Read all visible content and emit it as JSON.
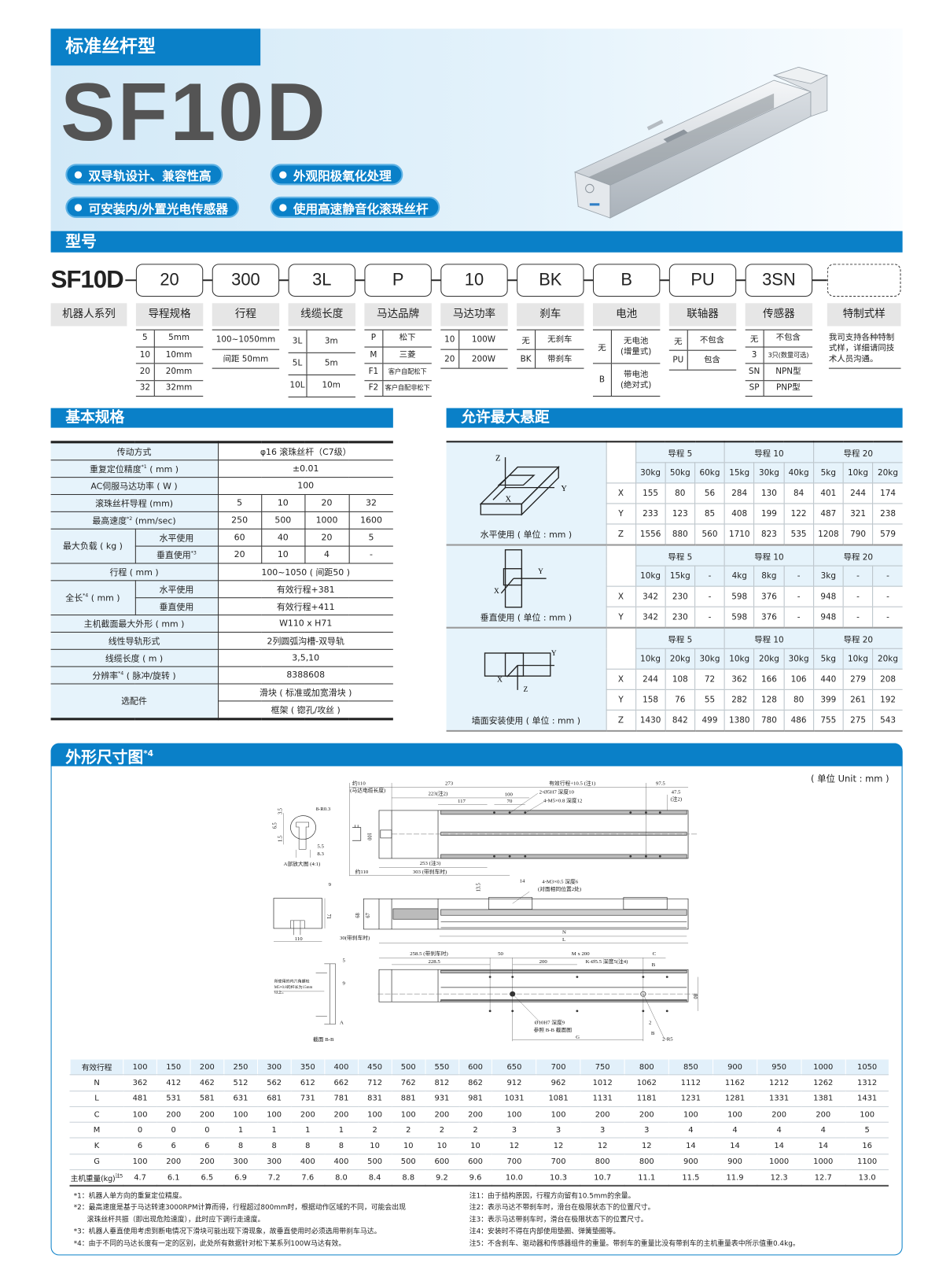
{
  "hero": {
    "tag": "标准丝杆型",
    "model": "SF10D",
    "features": [
      "双导轨设计、兼容性高",
      "外观阳极氧化处理",
      "可安装内/外置光电传感器",
      "使用高速静音化滚珠丝杆"
    ],
    "accent_color": "#0a80c8"
  },
  "model_code": {
    "title": "型号",
    "prefix": "SF10D",
    "codes": [
      "20",
      "300",
      "3L",
      "P",
      "10",
      "BK",
      "B",
      "PU",
      "3SN",
      ""
    ],
    "labels": [
      "机器人系列",
      "导程规格",
      "行程",
      "线缆长度",
      "马达品牌",
      "马达功率",
      "刹车",
      "电池",
      "联轴器",
      "传感器",
      "特制式样"
    ],
    "options": [
      [
        [
          "5",
          "5mm"
        ],
        [
          "10",
          "10mm"
        ],
        [
          "20",
          "20mm"
        ],
        [
          "32",
          "32mm"
        ]
      ],
      [
        [
          "",
          "100~1050mm"
        ],
        [
          "",
          "间距 50mm"
        ]
      ],
      [
        [
          "3L",
          "3m"
        ],
        [
          "5L",
          "5m"
        ],
        [
          "10L",
          "10m"
        ]
      ],
      [
        [
          "P",
          "松下"
        ],
        [
          "M",
          "三菱"
        ],
        [
          "F1",
          "客户自配松下"
        ],
        [
          "F2",
          "客户自配非松下"
        ]
      ],
      [
        [
          "10",
          "100W"
        ],
        [
          "20",
          "200W"
        ]
      ],
      [
        [
          "无",
          "无刹车"
        ],
        [
          "BK",
          "带刹车"
        ]
      ],
      [
        [
          "无",
          "无电池\n(增量式)"
        ],
        [
          "B",
          "带电池\n(绝对式)"
        ]
      ],
      [
        [
          "无",
          "不包含"
        ],
        [
          "PU",
          "包含"
        ]
      ],
      [
        [
          "无",
          "不包含"
        ],
        [
          "3",
          "3只(数量可选)"
        ],
        [
          "SN",
          "NPN型"
        ],
        [
          "SP",
          "PNP型"
        ]
      ]
    ],
    "custom_note": "我司支持各种特制式样，详细请同技术人员沟通。"
  },
  "spec": {
    "title": "基本规格",
    "drive": {
      "label": "传动方式",
      "value": "φ16 滚珠丝杆（C7级）"
    },
    "repeat": {
      "label": "重复定位精度",
      "note": "*1",
      "unit": "( mm )",
      "value": "±0.01"
    },
    "power": {
      "label": "AC伺服马达功率 ( W )",
      "value": "100"
    },
    "lead": {
      "label": "滚珠丝杆导程 (mm)",
      "values": [
        "5",
        "10",
        "20",
        "32"
      ]
    },
    "speed": {
      "label": "最高速度",
      "note": "*2",
      "unit": "(mm/sec)",
      "values": [
        "250",
        "500",
        "1000",
        "1600"
      ]
    },
    "load": {
      "label": "最大负载 ( kg )",
      "h_label": "水平使用",
      "h": [
        "60",
        "40",
        "20",
        "5"
      ],
      "v_label": "垂直使用",
      "v_note": "*3",
      "v": [
        "20",
        "10",
        "4",
        "-"
      ]
    },
    "stroke": {
      "label": "行程 ( mm )",
      "value": "100~1050 ( 间距50 )"
    },
    "length": {
      "label": "全长",
      "note": "*4",
      "unit": "( mm )",
      "h_label": "水平使用",
      "h": "有效行程+381",
      "v_label": "垂直使用",
      "v": "有效行程+411"
    },
    "section": {
      "label": "主机截面最大外形 ( mm )",
      "value": "W110 x H71"
    },
    "guide": {
      "label": "线性导轨形式",
      "value": "2列圆弧沟槽-双导轨"
    },
    "cable": {
      "label": "线缆长度 ( m )",
      "value": "3,5,10"
    },
    "resolution": {
      "label": "分辨率",
      "note": "*4",
      "unit": "( 脉冲/旋转 )",
      "value": "8388608"
    },
    "options": {
      "label": "选配件",
      "values": [
        "滑块 ( 标准或加宽滑块 )",
        "框架 ( 锪孔/攻丝 )"
      ]
    }
  },
  "overhang": {
    "title": "允许最大悬距",
    "blocks": [
      {
        "caption": "水平使用 ( 单位 : mm )",
        "axes": [
          "Z",
          "Y",
          "X"
        ],
        "groups": [
          "导程 5",
          "导程 10",
          "导程 20"
        ],
        "loads": [
          "30kg",
          "50kg",
          "60kg",
          "15kg",
          "30kg",
          "40kg",
          "5kg",
          "10kg",
          "20kg"
        ],
        "rows": [
          {
            "axis": "X",
            "values": [
              "155",
              "80",
              "56",
              "284",
              "130",
              "84",
              "401",
              "244",
              "174"
            ]
          },
          {
            "axis": "Y",
            "values": [
              "233",
              "123",
              "85",
              "408",
              "199",
              "122",
              "487",
              "321",
              "238"
            ]
          },
          {
            "axis": "Z",
            "values": [
              "1556",
              "880",
              "560",
              "1710",
              "823",
              "535",
              "1208",
              "790",
              "579"
            ]
          }
        ]
      },
      {
        "caption": "垂直使用 ( 单位 : mm )",
        "axes": [
          "Y",
          "X"
        ],
        "groups": [
          "导程 5",
          "导程 10",
          "导程 20"
        ],
        "loads": [
          "10kg",
          "15kg",
          "-",
          "4kg",
          "8kg",
          "-",
          "3kg",
          "-",
          "-"
        ],
        "rows": [
          {
            "axis": "X",
            "values": [
              "342",
              "230",
              "-",
              "598",
              "376",
              "-",
              "948",
              "-",
              "-"
            ]
          },
          {
            "axis": "Y",
            "values": [
              "342",
              "230",
              "-",
              "598",
              "376",
              "-",
              "948",
              "-",
              "-"
            ]
          }
        ]
      },
      {
        "caption": "墙面安装使用 ( 单位 : mm )",
        "axes": [
          "Y",
          "X",
          "Z"
        ],
        "groups": [
          "导程 5",
          "导程 10",
          "导程 20"
        ],
        "loads": [
          "10kg",
          "20kg",
          "30kg",
          "10kg",
          "20kg",
          "30kg",
          "5kg",
          "10kg",
          "20kg"
        ],
        "rows": [
          {
            "axis": "X",
            "values": [
              "244",
              "108",
              "72",
              "362",
              "166",
              "106",
              "440",
              "279",
              "208"
            ]
          },
          {
            "axis": "Y",
            "values": [
              "158",
              "76",
              "55",
              "282",
              "128",
              "80",
              "399",
              "261",
              "192"
            ]
          },
          {
            "axis": "Z",
            "values": [
              "1430",
              "842",
              "499",
              "1380",
              "780",
              "486",
              "755",
              "275",
              "543"
            ]
          }
        ]
      }
    ]
  },
  "dimensions": {
    "title": "外形尺寸图",
    "title_note": "*4",
    "unit": "( 单位 Unit : mm )",
    "drawing_labels": [
      "约110",
      "(马达电缆长度)",
      "273",
      "有效行程+10.5 (注1)",
      "97.5",
      "223(注2)",
      "100",
      "70",
      "117",
      "2-Ø5H7 深度10",
      "4-M5×0.8 深度12",
      "47.5",
      "(注2)",
      "8-R0.3",
      "A部放大图 (4:1)",
      "253 (注3)",
      "303 (带刹车时)",
      "约110",
      "100",
      "6.5",
      "3.5",
      "1.5",
      "5.5",
      "8.3",
      "9",
      "71",
      "110",
      "13.5",
      "14",
      "4-M3×0.5 深度6",
      "(对面相同位置2处)",
      "68",
      "67",
      "30(带刹车时)",
      "N",
      "L",
      "258.5 (带刹车时)",
      "228.5",
      "50",
      "M x 200",
      "200",
      "K-Ø5.5 深度5(注4)",
      "C",
      "B",
      "80",
      "Ø10H7 深度9",
      "参照 B-B 截面图",
      "G",
      "2",
      "B",
      "2-R5",
      "5",
      "9",
      "所使用的内六角螺栓",
      "M5×0.8的杆长为15mm",
      "以上。",
      "A",
      "截面 B-B"
    ],
    "table": [
      {
        "label": "有效行程",
        "values": [
          "100",
          "150",
          "200",
          "250",
          "300",
          "350",
          "400",
          "450",
          "500",
          "550",
          "600",
          "650",
          "700",
          "750",
          "800",
          "850",
          "900",
          "950",
          "1000",
          "1050"
        ]
      },
      {
        "label": "N",
        "values": [
          "362",
          "412",
          "462",
          "512",
          "562",
          "612",
          "662",
          "712",
          "762",
          "812",
          "862",
          "912",
          "962",
          "1012",
          "1062",
          "1112",
          "1162",
          "1212",
          "1262",
          "1312"
        ]
      },
      {
        "label": "L",
        "values": [
          "481",
          "531",
          "581",
          "631",
          "681",
          "731",
          "781",
          "831",
          "881",
          "931",
          "981",
          "1031",
          "1081",
          "1131",
          "1181",
          "1231",
          "1281",
          "1331",
          "1381",
          "1431"
        ]
      },
      {
        "label": "C",
        "values": [
          "100",
          "200",
          "200",
          "100",
          "100",
          "200",
          "200",
          "100",
          "100",
          "200",
          "200",
          "100",
          "100",
          "200",
          "200",
          "100",
          "100",
          "200",
          "200",
          "100"
        ]
      },
      {
        "label": "M",
        "values": [
          "0",
          "0",
          "0",
          "1",
          "1",
          "1",
          "1",
          "2",
          "2",
          "2",
          "2",
          "3",
          "3",
          "3",
          "3",
          "4",
          "4",
          "4",
          "4",
          "5"
        ]
      },
      {
        "label": "K",
        "values": [
          "6",
          "6",
          "6",
          "8",
          "8",
          "8",
          "8",
          "10",
          "10",
          "10",
          "10",
          "12",
          "12",
          "12",
          "12",
          "14",
          "14",
          "14",
          "14",
          "16"
        ]
      },
      {
        "label": "G",
        "values": [
          "100",
          "200",
          "200",
          "300",
          "300",
          "400",
          "400",
          "500",
          "500",
          "600",
          "600",
          "700",
          "700",
          "800",
          "800",
          "900",
          "900",
          "1000",
          "1000",
          "1100"
        ]
      },
      {
        "label": "主机重量(kg)",
        "note": "注5",
        "values": [
          "4.7",
          "6.1",
          "6.5",
          "6.9",
          "7.2",
          "7.6",
          "8.0",
          "8.4",
          "8.8",
          "9.2",
          "9.6",
          "10.0",
          "10.3",
          "10.7",
          "11.1",
          "11.5",
          "11.9",
          "12.3",
          "12.7",
          "13.0"
        ]
      }
    ],
    "notes_left": [
      "*1：机器人单方向的重复定位精度。",
      "*2：最高速度是基于马达转速3000RPM计算而得，行程超过800mm时，根据动作区域的不同，可能会出现",
      "      滚珠丝杆共振（即出现危险速度），此时应下调行走速度。",
      "*3：机器人垂直使用考虑到断电情况下滑块可能出现下滑现象，故垂直使用时必须选用带刹车马达。",
      "*4：由于不同的马达长度有一定的区别，此处所有数据针对松下某系列100W马达有效。"
    ],
    "notes_right": [
      "注1：由于结构原因，行程方向留有10.5mm的余量。",
      "注2：表示马达不带刹车时，滑台在极限状态下的位置尺寸。",
      "注3：表示马达带刹车时，滑台在极限状态下的位置尺寸。",
      "注4：安装时不得在内部使用垫圈、弹簧垫圈等。",
      "注5：不含刹车、驱动器和传感器组件的重量。带刹车的重量比没有带刹车的主机重量表中所示值重0.4kg。"
    ]
  }
}
